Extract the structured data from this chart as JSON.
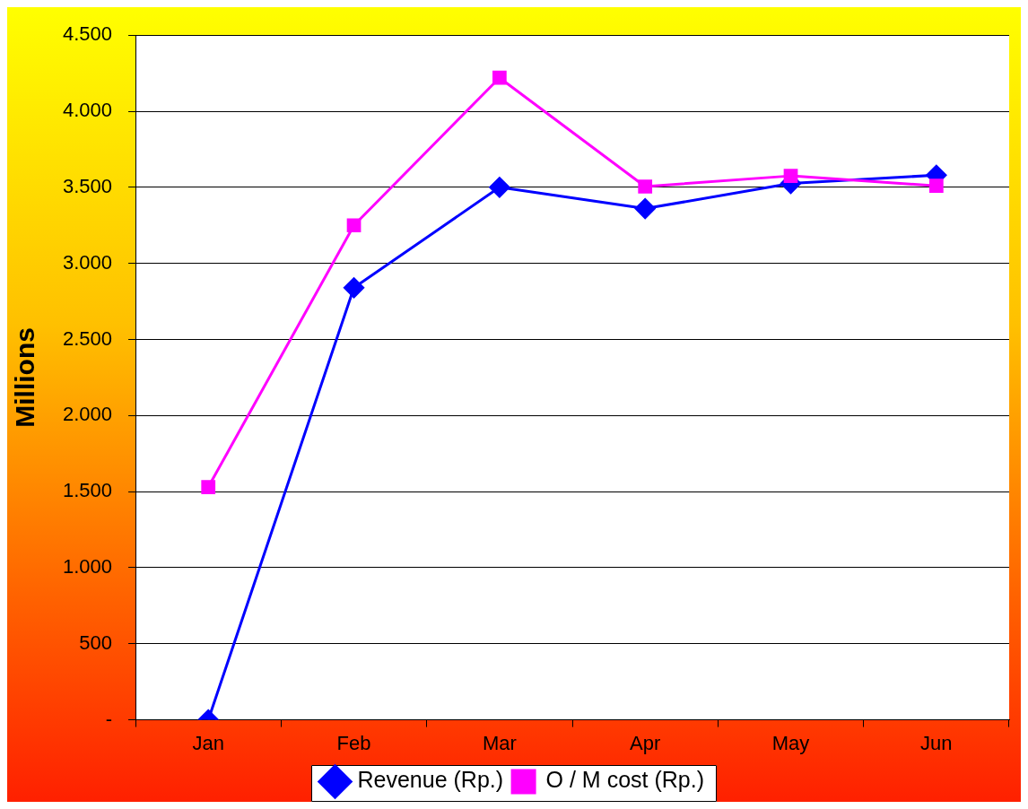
{
  "chart_data": {
    "type": "line",
    "ylabel": "Millions",
    "categories": [
      "Jan",
      "Feb",
      "Mar",
      "Apr",
      "May",
      "Jun"
    ],
    "series": [
      {
        "name": "Revenue (Rp.)",
        "color": "#0000ff",
        "marker": "diamond",
        "values": [
          0,
          2840,
          3500,
          3360,
          3525,
          3580
        ]
      },
      {
        "name": "O / M cost (Rp.)",
        "color": "#ff00ff",
        "marker": "square",
        "values": [
          1530,
          3250,
          4220,
          3505,
          3575,
          3510
        ]
      }
    ],
    "ylim": [
      0,
      4500
    ],
    "yticks": [
      {
        "value": 0,
        "label": "-"
      },
      {
        "value": 500,
        "label": "500"
      },
      {
        "value": 1000,
        "label": "1.000"
      },
      {
        "value": 1500,
        "label": "1.500"
      },
      {
        "value": 2000,
        "label": "2.000"
      },
      {
        "value": 2500,
        "label": "2.500"
      },
      {
        "value": 3000,
        "label": "3.000"
      },
      {
        "value": 3500,
        "label": "3.500"
      },
      {
        "value": 4000,
        "label": "4.000"
      },
      {
        "value": 4500,
        "label": "4.500"
      }
    ],
    "grid": "y",
    "legend": "bottom",
    "line_style": "solid"
  }
}
